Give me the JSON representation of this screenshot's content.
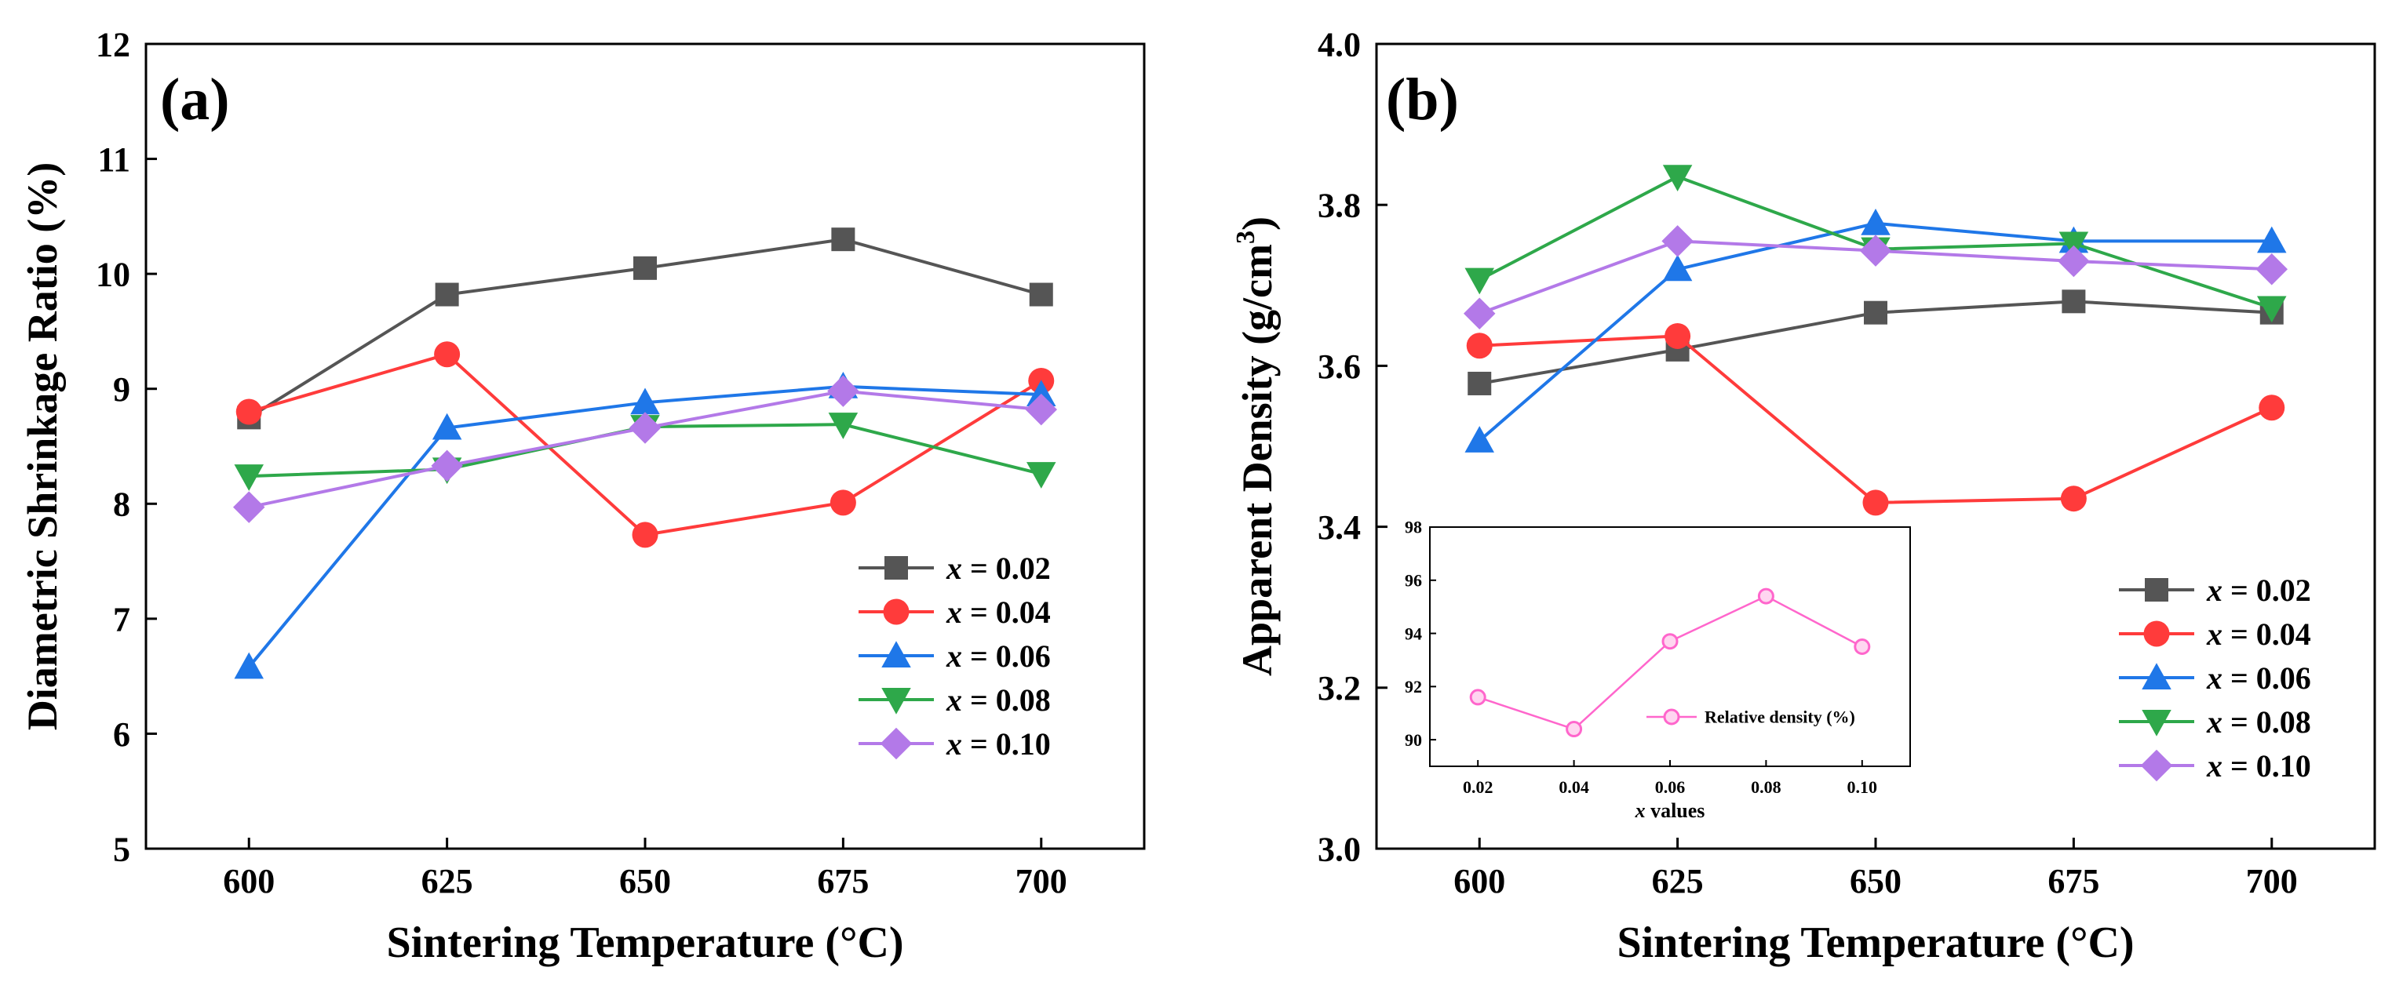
{
  "chart_data": [
    {
      "type": "line",
      "panel_label": "(a)",
      "title": "",
      "xlabel": "Sintering Temperature (°C)",
      "ylabel": "Diametric Shrinkage Ratio (%)",
      "x": [
        600,
        625,
        650,
        675,
        700
      ],
      "xlim": [
        587,
        713
      ],
      "ylim": [
        5,
        12
      ],
      "xticks": [
        "600",
        "625",
        "650",
        "675",
        "700"
      ],
      "yticks": [
        "5",
        "6",
        "7",
        "8",
        "9",
        "10",
        "11",
        "12"
      ],
      "ytick_values": [
        5,
        6,
        7,
        8,
        9,
        10,
        11,
        12
      ],
      "legend_position": "lower-right",
      "series": [
        {
          "name": "x = 0.02",
          "var": "x",
          "rest": " = 0.02",
          "color": "#555555",
          "marker": "square",
          "values": [
            8.75,
            9.82,
            10.05,
            10.3,
            9.82
          ]
        },
        {
          "name": "x = 0.04",
          "var": "x",
          "rest": " = 0.04",
          "color": "#ff3b3b",
          "marker": "circle",
          "values": [
            8.8,
            9.3,
            7.73,
            8.01,
            9.07
          ]
        },
        {
          "name": "x = 0.06",
          "var": "x",
          "rest": " = 0.06",
          "color": "#1f77e8",
          "marker": "triangle-up",
          "values": [
            6.58,
            8.66,
            8.88,
            9.02,
            8.95
          ]
        },
        {
          "name": "x = 0.08",
          "var": "x",
          "rest": " = 0.08",
          "color": "#2ea84a",
          "marker": "triangle-down",
          "values": [
            8.24,
            8.3,
            8.67,
            8.69,
            8.26
          ]
        },
        {
          "name": "x = 0.10",
          "var": "x",
          "rest": " = 0.10",
          "color": "#b379e8",
          "marker": "diamond",
          "values": [
            7.97,
            8.33,
            8.66,
            8.98,
            8.82
          ]
        }
      ]
    },
    {
      "type": "line",
      "panel_label": "(b)",
      "title": "",
      "xlabel": "Sintering Temperature (°C)",
      "ylabel": "Apparent Density (g/cm",
      "ylabel_sup": "3",
      "ylabel_end": ")",
      "x": [
        600,
        625,
        650,
        675,
        700
      ],
      "xlim": [
        587,
        713
      ],
      "ylim": [
        3.0,
        4.0
      ],
      "xticks": [
        "600",
        "625",
        "650",
        "675",
        "700"
      ],
      "yticks": [
        "3.0",
        "3.2",
        "3.4",
        "3.6",
        "3.8",
        "4.0"
      ],
      "ytick_values": [
        3.0,
        3.2,
        3.4,
        3.6,
        3.8,
        4.0
      ],
      "legend_position": "lower-right",
      "series": [
        {
          "name": "x = 0.02",
          "var": "x",
          "rest": " = 0.02",
          "color": "#555555",
          "marker": "square",
          "values": [
            3.578,
            3.62,
            3.666,
            3.68,
            3.666
          ]
        },
        {
          "name": "x = 0.04",
          "var": "x",
          "rest": " = 0.04",
          "color": "#ff3b3b",
          "marker": "circle",
          "values": [
            3.625,
            3.637,
            3.43,
            3.435,
            3.548
          ]
        },
        {
          "name": "x = 0.06",
          "var": "x",
          "rest": " = 0.06",
          "color": "#1f77e8",
          "marker": "triangle-up",
          "values": [
            3.507,
            3.72,
            3.777,
            3.755,
            3.755
          ]
        },
        {
          "name": "x = 0.08",
          "var": "x",
          "rest": " = 0.08",
          "color": "#2ea84a",
          "marker": "triangle-down",
          "values": [
            3.707,
            3.835,
            3.745,
            3.752,
            3.672
          ]
        },
        {
          "name": "x = 0.10",
          "var": "x",
          "rest": " = 0.10",
          "color": "#b379e8",
          "marker": "diamond",
          "values": [
            3.665,
            3.755,
            3.743,
            3.73,
            3.72
          ]
        }
      ],
      "inset": {
        "type": "line",
        "xlabel_var": "x",
        "xlabel_rest": " values",
        "x": [
          0.02,
          0.04,
          0.06,
          0.08,
          0.1
        ],
        "xlim": [
          0.01,
          0.11
        ],
        "ylim": [
          89,
          98
        ],
        "xticks": [
          "0.02",
          "0.04",
          "0.06",
          "0.08",
          "0.10"
        ],
        "yticks": [
          "90",
          "92",
          "94",
          "96",
          "98"
        ],
        "ytick_values": [
          90,
          92,
          94,
          96,
          98
        ],
        "legend_position": "lower-right",
        "series": [
          {
            "name": "Relative density (%)",
            "color": "#ff66cc",
            "marker": "circle-open",
            "values": [
              91.6,
              90.4,
              93.7,
              95.4,
              93.5
            ]
          }
        ]
      }
    }
  ]
}
